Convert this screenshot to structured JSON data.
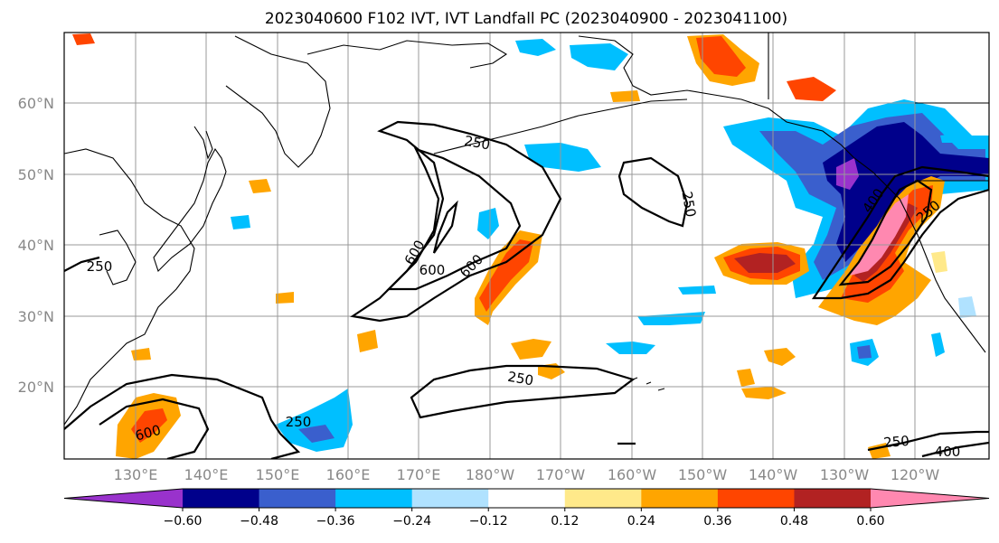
{
  "title": "2023040600 F102 IVT, IVT Landfall PC (2023040900 - 2023041100)",
  "lat_labels": [
    "60°N",
    "50°N",
    "40°N",
    "30°N",
    "20°N"
  ],
  "lon_labels": [
    "130°E",
    "140°E",
    "150°E",
    "160°E",
    "170°E",
    "180°W",
    "170°W",
    "160°W",
    "150°W",
    "140°W",
    "130°W",
    "120°W"
  ],
  "colorbar": {
    "ticks": [
      "−0.60",
      "−0.48",
      "−0.36",
      "−0.24",
      "−0.12",
      "0.12",
      "0.24",
      "0.36",
      "0.48",
      "0.60"
    ],
    "colors": [
      "#9932cc",
      "#00008b",
      "#3a5fcd",
      "#00bfff",
      "#b0e2ff",
      "#ffffff",
      "#ffe98a",
      "#ffa500",
      "#ff4500",
      "#b22222",
      "#ff88b0"
    ]
  },
  "contour_labels": {
    "pacific_a": "250",
    "pacific_b": "600",
    "pacific_c": "600",
    "pacific_d": "600",
    "pacific_e": "250",
    "asia": "250",
    "south_a": "250",
    "south_b": "250",
    "south_c": "600",
    "coast_a": "250",
    "coast_b": "400",
    "coast_c": "250",
    "coast_d": "400"
  }
}
